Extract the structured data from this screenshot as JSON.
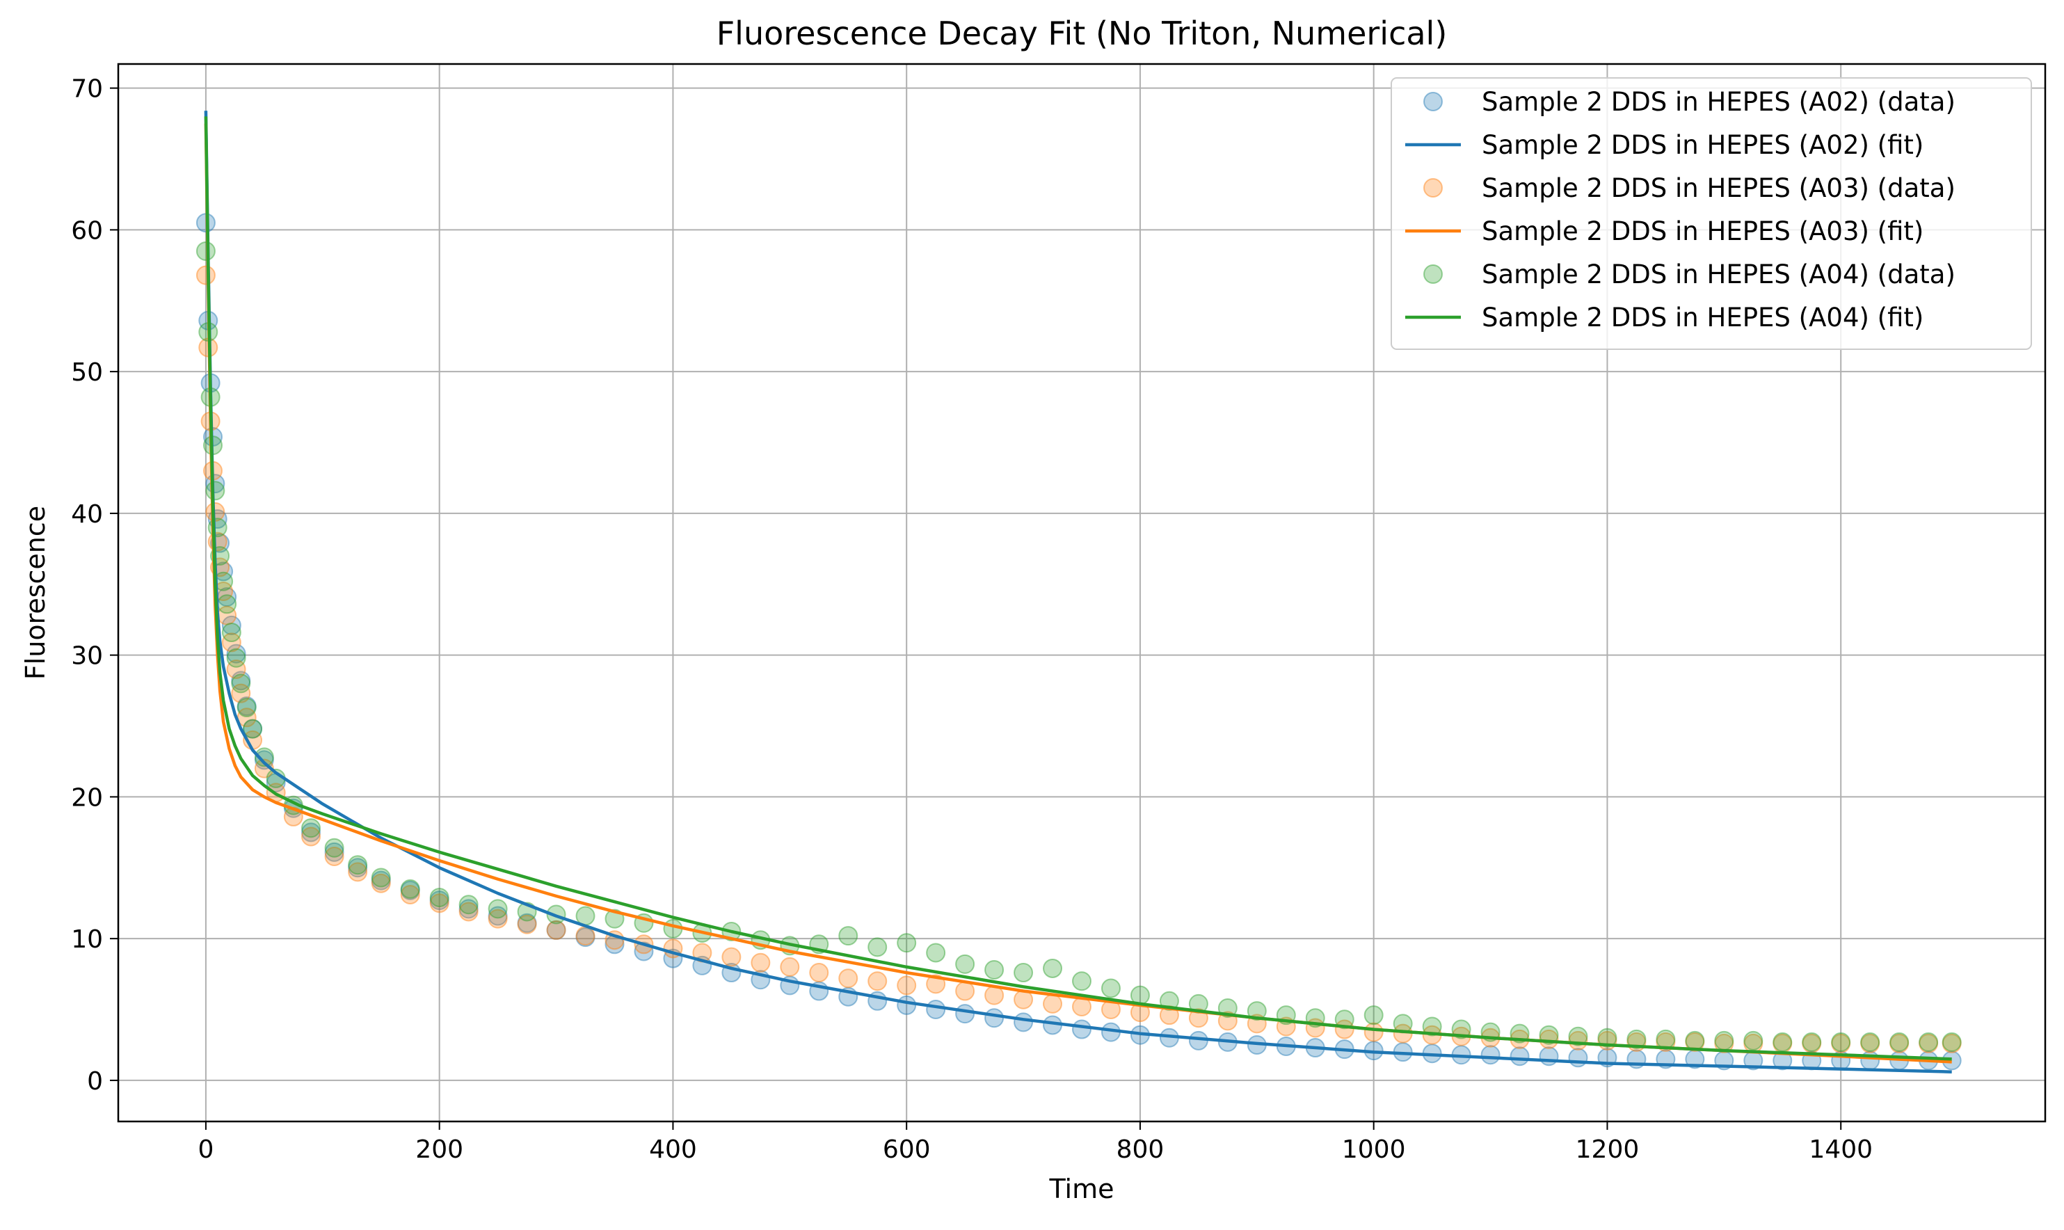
{
  "chart_data": {
    "type": "scatter",
    "title": "Fluorescence Decay Fit (No Triton, Numerical)",
    "xlabel": "Time",
    "ylabel": "Fluorescence",
    "xlim": [
      -75,
      1575
    ],
    "ylim": [
      -2.9,
      71.7
    ],
    "xticks": [
      0,
      200,
      400,
      600,
      800,
      1000,
      1200,
      1400
    ],
    "yticks": [
      0,
      10,
      20,
      30,
      40,
      50,
      60,
      70
    ],
    "grid": true,
    "legend_position": "top-right",
    "series": [
      {
        "name": "Sample 2 DDS in HEPES (A02) (data)",
        "kind": "scatter",
        "color": "#1f77b4",
        "x": [
          0,
          2,
          4,
          6,
          8,
          10,
          12,
          15,
          18,
          22,
          26,
          30,
          35,
          40,
          50,
          60,
          75,
          90,
          110,
          130,
          150,
          175,
          200,
          225,
          250,
          275,
          300,
          325,
          350,
          375,
          400,
          425,
          450,
          475,
          500,
          525,
          550,
          575,
          600,
          625,
          650,
          675,
          700,
          725,
          750,
          775,
          800,
          825,
          850,
          875,
          900,
          925,
          950,
          975,
          1000,
          1025,
          1050,
          1075,
          1100,
          1125,
          1150,
          1175,
          1200,
          1225,
          1250,
          1275,
          1300,
          1325,
          1350,
          1375,
          1400,
          1425,
          1450,
          1475,
          1495
        ],
        "y": [
          60.5,
          53.6,
          49.2,
          45.4,
          42.1,
          39.6,
          37.9,
          35.9,
          34.1,
          32.1,
          30.1,
          28.2,
          26.4,
          24.8,
          22.6,
          21.0,
          19.2,
          17.5,
          16.1,
          15.0,
          14.1,
          13.4,
          12.7,
          12.1,
          11.6,
          11.1,
          10.6,
          10.1,
          9.6,
          9.1,
          8.6,
          8.1,
          7.6,
          7.1,
          6.7,
          6.3,
          5.9,
          5.6,
          5.3,
          5.0,
          4.7,
          4.4,
          4.1,
          3.9,
          3.6,
          3.4,
          3.2,
          3.0,
          2.8,
          2.7,
          2.5,
          2.4,
          2.3,
          2.2,
          2.1,
          2.0,
          1.9,
          1.8,
          1.8,
          1.7,
          1.7,
          1.6,
          1.6,
          1.5,
          1.5,
          1.5,
          1.4,
          1.4,
          1.4,
          1.4,
          1.4,
          1.4,
          1.4,
          1.4,
          1.4
        ]
      },
      {
        "name": "Sample 2 DDS in HEPES (A02) (fit)",
        "kind": "line",
        "color": "#1f77b4",
        "x": [
          0,
          2,
          4,
          6,
          8,
          10,
          12,
          15,
          20,
          25,
          30,
          40,
          50,
          60,
          80,
          100,
          150,
          200,
          250,
          300,
          350,
          400,
          450,
          500,
          600,
          700,
          800,
          900,
          1000,
          1100,
          1200,
          1300,
          1400,
          1495
        ],
        "y": [
          68.4,
          58.0,
          49.0,
          41.5,
          36.5,
          33.0,
          31.0,
          29.2,
          27.3,
          25.8,
          24.8,
          23.3,
          22.4,
          21.7,
          20.6,
          19.5,
          17.1,
          15.0,
          13.2,
          11.6,
          10.2,
          9.0,
          7.9,
          7.0,
          5.5,
          4.3,
          3.3,
          2.6,
          2.0,
          1.6,
          1.2,
          1.0,
          0.8,
          0.6
        ]
      },
      {
        "name": "Sample 2 DDS in HEPES (A03) (data)",
        "kind": "scatter",
        "color": "#ff7f0e",
        "x": [
          0,
          2,
          4,
          6,
          8,
          10,
          12,
          15,
          18,
          22,
          26,
          30,
          35,
          40,
          50,
          60,
          75,
          90,
          110,
          130,
          150,
          175,
          200,
          225,
          250,
          275,
          300,
          325,
          350,
          375,
          400,
          425,
          450,
          475,
          500,
          525,
          550,
          575,
          600,
          625,
          650,
          675,
          700,
          725,
          750,
          775,
          800,
          825,
          850,
          875,
          900,
          925,
          950,
          975,
          1000,
          1025,
          1050,
          1075,
          1100,
          1125,
          1150,
          1175,
          1200,
          1225,
          1250,
          1275,
          1300,
          1325,
          1350,
          1375,
          1400,
          1425,
          1450,
          1475,
          1495
        ],
        "y": [
          56.8,
          51.7,
          46.5,
          43.0,
          40.1,
          38.0,
          36.2,
          34.5,
          32.8,
          30.9,
          29.0,
          27.3,
          25.6,
          24.0,
          22.0,
          20.3,
          18.6,
          17.2,
          15.8,
          14.7,
          13.9,
          13.1,
          12.5,
          11.9,
          11.4,
          11.0,
          10.6,
          10.2,
          9.9,
          9.6,
          9.3,
          9.0,
          8.7,
          8.3,
          8.0,
          7.6,
          7.2,
          7.0,
          6.7,
          6.8,
          6.3,
          6.0,
          5.7,
          5.4,
          5.2,
          5.0,
          4.8,
          4.6,
          4.4,
          4.2,
          4.0,
          3.8,
          3.7,
          3.6,
          3.4,
          3.3,
          3.2,
          3.1,
          3.0,
          2.9,
          2.9,
          2.8,
          2.8,
          2.7,
          2.7,
          2.7,
          2.6,
          2.6,
          2.6,
          2.6,
          2.6,
          2.6,
          2.6,
          2.6,
          2.6
        ]
      },
      {
        "name": "Sample 2 DDS in HEPES (A03) (fit)",
        "kind": "line",
        "color": "#ff7f0e",
        "x": [
          0,
          2,
          4,
          6,
          8,
          10,
          12,
          15,
          20,
          25,
          30,
          40,
          50,
          60,
          80,
          100,
          150,
          200,
          250,
          300,
          350,
          400,
          450,
          500,
          600,
          700,
          800,
          900,
          1000,
          1100,
          1200,
          1300,
          1400,
          1495
        ],
        "y": [
          67.5,
          56.0,
          46.5,
          39.0,
          33.5,
          30.0,
          27.5,
          25.3,
          23.4,
          22.2,
          21.4,
          20.5,
          20.0,
          19.6,
          19.0,
          18.4,
          16.9,
          15.5,
          14.2,
          13.0,
          11.9,
          10.9,
          10.0,
          9.1,
          7.6,
          6.3,
          5.3,
          4.4,
          3.6,
          3.0,
          2.5,
          2.1,
          1.7,
          1.3
        ]
      },
      {
        "name": "Sample 2 DDS in HEPES (A04) (data)",
        "kind": "scatter",
        "color": "#2ca02c",
        "x": [
          0,
          2,
          4,
          6,
          8,
          10,
          12,
          15,
          18,
          22,
          26,
          30,
          35,
          40,
          50,
          60,
          75,
          90,
          110,
          130,
          150,
          175,
          200,
          225,
          250,
          275,
          300,
          325,
          350,
          375,
          400,
          425,
          450,
          475,
          500,
          525,
          550,
          575,
          600,
          625,
          650,
          675,
          700,
          725,
          750,
          775,
          800,
          825,
          850,
          875,
          900,
          925,
          950,
          975,
          1000,
          1025,
          1050,
          1075,
          1100,
          1125,
          1150,
          1175,
          1200,
          1225,
          1250,
          1275,
          1300,
          1325,
          1350,
          1375,
          1400,
          1425,
          1450,
          1475,
          1495
        ],
        "y": [
          58.5,
          52.8,
          48.2,
          44.8,
          41.6,
          39.0,
          37.0,
          35.2,
          33.6,
          31.6,
          29.8,
          28.0,
          26.3,
          24.8,
          22.8,
          21.3,
          19.4,
          17.8,
          16.4,
          15.2,
          14.3,
          13.5,
          12.9,
          12.4,
          12.1,
          11.9,
          11.7,
          11.6,
          11.4,
          11.1,
          10.7,
          10.4,
          10.5,
          9.9,
          9.5,
          9.6,
          10.2,
          9.4,
          9.7,
          9.0,
          8.2,
          7.8,
          7.6,
          7.9,
          7.0,
          6.5,
          6.0,
          5.6,
          5.4,
          5.1,
          4.9,
          4.6,
          4.4,
          4.3,
          4.6,
          4.0,
          3.8,
          3.6,
          3.4,
          3.3,
          3.2,
          3.1,
          3.0,
          2.9,
          2.9,
          2.8,
          2.8,
          2.8,
          2.7,
          2.7,
          2.7,
          2.7,
          2.7,
          2.7,
          2.7
        ]
      },
      {
        "name": "Sample 2 DDS in HEPES (A04) (fit)",
        "kind": "line",
        "color": "#2ca02c",
        "x": [
          0,
          2,
          4,
          6,
          8,
          10,
          12,
          15,
          20,
          25,
          30,
          40,
          50,
          60,
          80,
          100,
          150,
          200,
          250,
          300,
          350,
          400,
          450,
          500,
          600,
          700,
          800,
          900,
          1000,
          1100,
          1200,
          1300,
          1400,
          1495
        ],
        "y": [
          68.0,
          57.0,
          48.0,
          40.5,
          35.0,
          31.2,
          28.8,
          26.8,
          24.8,
          23.6,
          22.7,
          21.5,
          20.8,
          20.2,
          19.4,
          18.8,
          17.4,
          16.1,
          14.9,
          13.7,
          12.6,
          11.5,
          10.5,
          9.6,
          8.0,
          6.6,
          5.4,
          4.4,
          3.6,
          3.0,
          2.5,
          2.1,
          1.8,
          1.5
        ]
      }
    ]
  }
}
